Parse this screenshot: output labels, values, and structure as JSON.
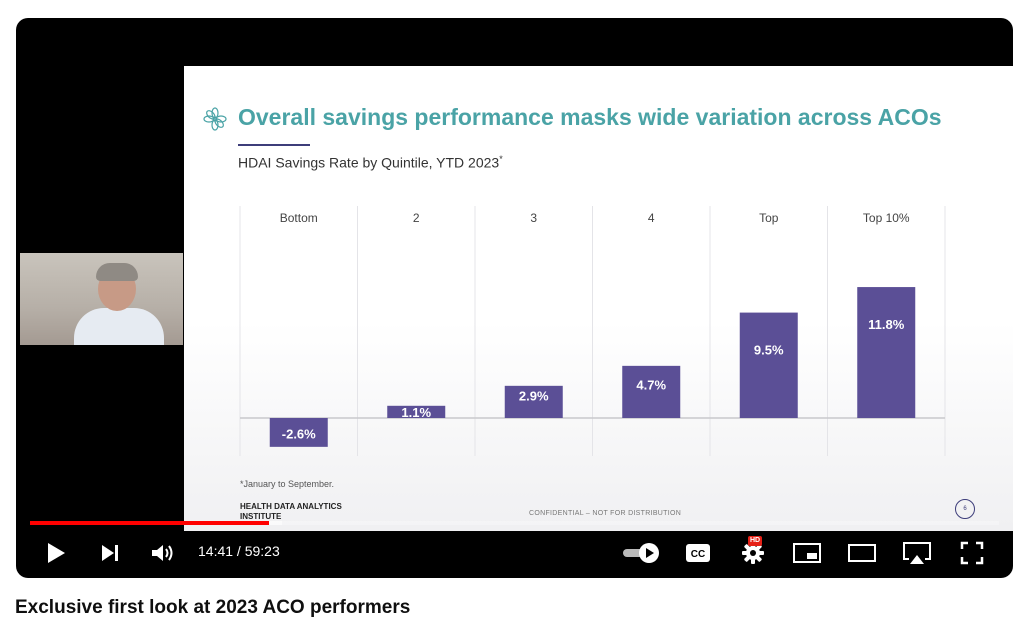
{
  "slide": {
    "title": "Overall savings performance masks wide variation across ACOs",
    "subtitle": "HDAI Savings Rate by Quintile, YTD 2023",
    "subtitle_mark": "*",
    "footnote": "*January to September.",
    "org_name": "HEALTH DATA ANALYTICS INSTITUTE",
    "confidential": "CONFIDENTIAL – NOT FOR DISTRIBUTION",
    "page_number": "6",
    "colors": {
      "title": "#4aa3a6",
      "bar": "#5b4f96"
    }
  },
  "chart_data": {
    "type": "bar",
    "categories": [
      "Bottom",
      "2",
      "3",
      "4",
      "Top",
      "Top 10%"
    ],
    "values": [
      -2.6,
      1.1,
      2.9,
      4.7,
      9.5,
      11.8
    ],
    "labels": [
      "-2.6%",
      "1.1%",
      "2.9%",
      "4.7%",
      "9.5%",
      "11.8%"
    ],
    "title": "HDAI Savings Rate by Quintile, YTD 2023",
    "xlabel": "",
    "ylabel": "",
    "ylim": [
      -3.2,
      14.6
    ],
    "grid": false,
    "legend": "none"
  },
  "player": {
    "current_time": "14:41",
    "duration": "59:23",
    "time_separator": " / ",
    "progress_fraction": 0.247,
    "loaded_fraction": 0.26,
    "hd_badge": "HD",
    "icons": {
      "play": "play-icon",
      "next": "next-icon",
      "volume": "volume-icon",
      "autoplay": "autoplay-toggle-icon",
      "captions": "captions-icon",
      "settings": "gear-icon",
      "miniplayer": "miniplayer-icon",
      "theater": "theater-icon",
      "airplay": "airplay-icon",
      "fullscreen": "fullscreen-icon"
    },
    "colors": {
      "progress": "#ff0000"
    }
  },
  "video": {
    "title": "Exclusive first look at 2023 ACO performers"
  }
}
